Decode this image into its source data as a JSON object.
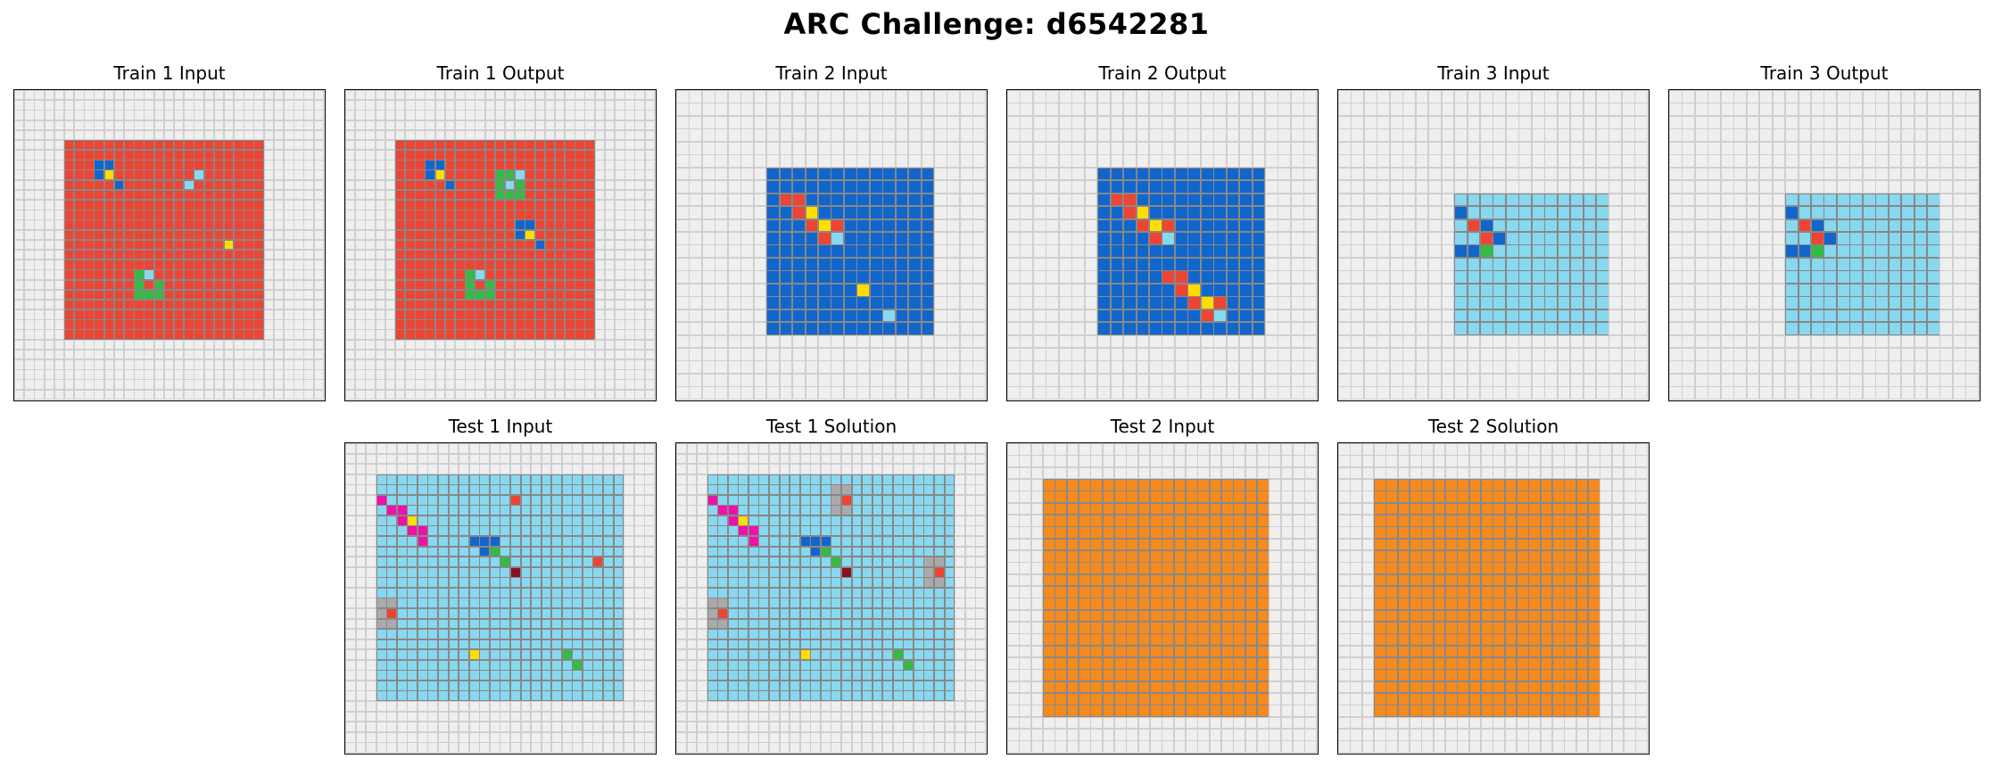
{
  "title": "ARC Challenge: d6542281",
  "palette": {
    "0": "#efefef",
    "1": "#1166cc",
    "2": "#ee4433",
    "3": "#33bb44",
    "4": "#ffdd00",
    "5": "#aaaaaa",
    "6": "#ee11aa",
    "7": "#f58a1f",
    "8": "#88d8f0",
    "9": "#881122"
  },
  "gridline_color": "#888888",
  "panels": [
    {
      "title": "Train 1 Input",
      "grid": [
        "0000000000000000000000000000000",
        "0000000000000000000000000000000",
        "0000000000000000000000000000000",
        "0000000000000000000000000000000",
        "0000000000000000000000000000000",
        "0000022222222222222222222000000",
        "0000022222222222222222222000000",
        "0000022211222222222222222000000",
        "0000022214222222228222222000000",
        "0000022222122222282222222000000",
        "0000022222222222222222222000000",
        "0000022222222222222222222000000",
        "0000022222222222222222222000000",
        "0000022222222222222222222000000",
        "0000022222222222222222222000000",
        "0000022222222222222224222000000",
        "0000022222222222222222222000000",
        "0000022222222222222222222000000",
        "0000022222223822222222222000000",
        "0000022222223232222222222000000",
        "0000022222223332222222222000000",
        "0000022222222222222222222000000",
        "0000022222222222222222222000000",
        "0000022222222222222222222000000",
        "0000022222222222222222222000000",
        "0000000000000000000000000000000",
        "0000000000000000000000000000000",
        "0000000000000000000000000000000",
        "0000000000000000000000000000000",
        "0000000000000000000000000000000",
        "0000000000000000000000000000000"
      ]
    },
    {
      "title": "Train 1 Output",
      "grid": [
        "0000000000000000000000000000000",
        "0000000000000000000000000000000",
        "0000000000000000000000000000000",
        "0000000000000000000000000000000",
        "0000000000000000000000000000000",
        "0000022222222222222222222000000",
        "0000022222222222222222222000000",
        "0000022211222222222222222000000",
        "0000022214222223382222222000000",
        "0000022222122223832222222000000",
        "0000022222222223332222222000000",
        "0000022222222222222222222000000",
        "0000022222222222222222222000000",
        "0000022222222222211222222000000",
        "0000022222222222214222222000000",
        "0000022222222222222122222000000",
        "0000022222222222222222222000000",
        "0000022222222222222222222000000",
        "0000022222223822222222222000000",
        "0000022222223232222222222000000",
        "0000022222223332222222222000000",
        "0000022222222222222222222000000",
        "0000022222222222222222222000000",
        "0000022222222222222222222000000",
        "0000022222222222222222222000000",
        "0000000000000000000000000000000",
        "0000000000000000000000000000000",
        "0000000000000000000000000000000",
        "0000000000000000000000000000000",
        "0000000000000000000000000000000",
        "0000000000000000000000000000000"
      ]
    },
    {
      "title": "Train 2 Input",
      "grid": [
        "000000000000000000000000",
        "000000000000000000000000",
        "000000000000000000000000",
        "000000000000000000000000",
        "000000000000000000000000",
        "000000000000000000000000",
        "000000011111111111110000",
        "000000011111111111110000",
        "000000012211111111110000",
        "000000011241111111110000",
        "000000011124211111110000",
        "000000011112811111110000",
        "000000011111111111110000",
        "000000011111111111110000",
        "000000011111111111110000",
        "000000011111114111110000",
        "000000011111111111110000",
        "000000011111111181110000",
        "000000011111111111110000",
        "000000000000000000000000",
        "000000000000000000000000",
        "000000000000000000000000",
        "000000000000000000000000",
        "000000000000000000000000"
      ]
    },
    {
      "title": "Train 2 Output",
      "grid": [
        "000000000000000000000000",
        "000000000000000000000000",
        "000000000000000000000000",
        "000000000000000000000000",
        "000000000000000000000000",
        "000000000000000000000000",
        "000000011111111111110000",
        "000000011111111111110000",
        "000000012211111111110000",
        "000000011241111111110000",
        "000000011124211111110000",
        "000000011112811111110000",
        "000000011111111111110000",
        "000000011111111111110000",
        "000000011111221111110000",
        "000000011111124111110000",
        "000000011111112421110000",
        "000000011111111281110000",
        "000000011111111111110000",
        "000000000000000000000000",
        "000000000000000000000000",
        "000000000000000000000000",
        "000000000000000000000000",
        "000000000000000000000000"
      ]
    },
    {
      "title": "Train 3 Input",
      "grid": [
        "000000000000000000000000",
        "000000000000000000000000",
        "000000000000000000000000",
        "000000000000000000000000",
        "000000000000000000000000",
        "000000000000000000000000",
        "000000000000000000000000",
        "000000000000000000000000",
        "000000000888888888888000",
        "000000000188888888888000",
        "000000000821888888888000",
        "000000000882188888888000",
        "000000000113888888888000",
        "000000000888888888888000",
        "000000000888888888888000",
        "000000000888888888888000",
        "000000000888888888888000",
        "000000000888888888888000",
        "000000000888888888888000",
        "000000000000000000000000",
        "000000000000000000000000",
        "000000000000000000000000",
        "000000000000000000000000",
        "000000000000000000000000"
      ]
    },
    {
      "title": "Train 3 Output",
      "grid": [
        "000000000000000000000000",
        "000000000000000000000000",
        "000000000000000000000000",
        "000000000000000000000000",
        "000000000000000000000000",
        "000000000000000000000000",
        "000000000000000000000000",
        "000000000000000000000000",
        "000000000888888888888000",
        "000000000188888888888000",
        "000000000821888888888000",
        "000000000882188888888000",
        "000000000113888888888000",
        "000000000888888888888000",
        "000000000888888888888000",
        "000000000888888888888000",
        "000000000888888888888000",
        "000000000888888888888000",
        "000000000888888888888000",
        "000000000000000000000000",
        "000000000000000000000000",
        "000000000000000000000000",
        "000000000000000000000000",
        "000000000000000000000000"
      ]
    },
    {
      "title": "Test 1 Input",
      "grid": [
        "000000000000000000000000000000",
        "000000000000000000000000000000",
        "000000000000000000000000000000",
        "000888888888888888888888888000",
        "000888888888888888888888888000",
        "000688888888888828888888888000",
        "000866888888888888888888888000",
        "000886488888888888888888888000",
        "000888668888888888888888888000",
        "000888868888111888888888888000",
        "000888888888813888888888888000",
        "000888888888888388888888288000",
        "000888888888888898888888888000",
        "000888888888888888888888888000",
        "000888888888888888888888888000",
        "000558888888888888888888888000",
        "000528888888888888888888888000",
        "000558888888888888888888888000",
        "000888888888888888888888888000",
        "000888888888888888888888888000",
        "000888888888488888888388888000",
        "000888888888888888888838888000",
        "000888888888888888888888888000",
        "000888888888888888888888888000",
        "000888888888888888888888888000",
        "000000000000000000000000000000",
        "000000000000000000000000000000",
        "000000000000000000000000000000",
        "000000000000000000000000000000",
        "000000000000000000000000000000"
      ]
    },
    {
      "title": "Test 1 Solution",
      "grid": [
        "000000000000000000000000000000",
        "000000000000000000000000000000",
        "000000000000000000000000000000",
        "000888888888888888888888888000",
        "000888888888888558888888888000",
        "000688888888888528888888888000",
        "000866888888888558888888888000",
        "000886488888888888888888888000",
        "000888668888888888888888888000",
        "000888868888111888888888888000",
        "000888888888813888888888888000",
        "000888888888888388888888558000",
        "000888888888888898888888528000",
        "000888888888888888888888558000",
        "000888888888888888888888888000",
        "000558888888888888888888888000",
        "000528888888888888888888888000",
        "000558888888888888888888888000",
        "000888888888888888888888888000",
        "000888888888888888888888888000",
        "000888888888488888888388888000",
        "000888888888888888888838888000",
        "000888888888888888888888888000",
        "000888888888888888888888888000",
        "000888888888888888888888888000",
        "000000000000000000000000000000",
        "000000000000000000000000000000",
        "000000000000000000000000000000",
        "000000000000000000000000000000",
        "000000000000000000000000000000"
      ]
    },
    {
      "title": "Test 2 Input",
      "grid": [
        "00000000000000000000000000",
        "00000000000000000000000000",
        "00000000000000000000000000",
        "00077777777777777777770000",
        "00077777777777777777770000",
        "00077777777777777777770000",
        "00077777777777777777770000",
        "00077777777777777777770000",
        "00077777777777777777770000",
        "00077777777777777777770000",
        "00077777777777777777770000",
        "00077777777777777777770000",
        "00077777777777777777770000",
        "00077777777777777777770000",
        "00077777777777777777770000",
        "00077777777777777777770000",
        "00077777777777777777770000",
        "00077777777777777777770000",
        "00077777777777777777770000",
        "00077777777777777777770000",
        "00077777777777777777770000",
        "00077777777777777777770000",
        "00077777777777777777770000",
        "00000000000000000000000000",
        "00000000000000000000000000",
        "00000000000000000000000000"
      ]
    },
    {
      "title": "Test 2 Solution",
      "grid": [
        "00000000000000000000000000",
        "00000000000000000000000000",
        "00000000000000000000000000",
        "00077777777777777777770000",
        "00077777777777777777770000",
        "00077777777777777777770000",
        "00077777777777777777770000",
        "00077777777777777777770000",
        "00077777777777777777770000",
        "00077777777777777777770000",
        "00077777777777777777770000",
        "00077777777777777777770000",
        "00077777777777777777770000",
        "00077777777777777777770000",
        "00077777777777777777770000",
        "00077777777777777777770000",
        "00077777777777777777770000",
        "00077777777777777777770000",
        "00077777777777777777770000",
        "00077777777777777777770000",
        "00077777777777777777770000",
        "00077777777777777777770000",
        "00077777777777777777770000",
        "00000000000000000000000000",
        "00000000000000000000000000",
        "00000000000000000000000000"
      ]
    }
  ]
}
